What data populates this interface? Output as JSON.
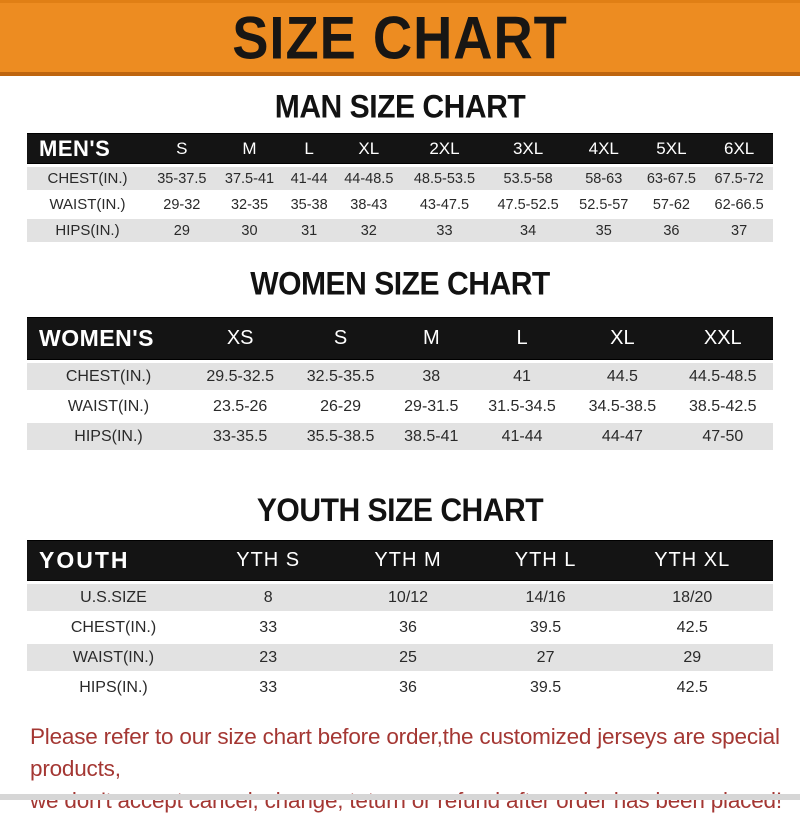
{
  "banner": {
    "title": "SIZE CHART",
    "bg_color": "#ED8C21",
    "text_color": "#181614"
  },
  "sections": [
    {
      "heading": "MAN SIZE CHART",
      "table": {
        "label": "MEN'S",
        "columns": [
          "S",
          "M",
          "L",
          "XL",
          "2XL",
          "3XL",
          "4XL",
          "5XL",
          "6XL"
        ],
        "rows": [
          {
            "label": "CHEST(IN.)",
            "values": [
              "35-37.5",
              "37.5-41",
              "41-44",
              "44-48.5",
              "48.5-53.5",
              "53.5-58",
              "58-63",
              "63-67.5",
              "67.5-72"
            ]
          },
          {
            "label": "WAIST(IN.)",
            "values": [
              "29-32",
              "32-35",
              "35-38",
              "38-43",
              "43-47.5",
              "47.5-52.5",
              "52.5-57",
              "57-62",
              "62-66.5"
            ]
          },
          {
            "label": "HIPS(IN.)",
            "values": [
              "29",
              "30",
              "31",
              "32",
              "33",
              "34",
              "35",
              "36",
              "37"
            ]
          }
        ]
      }
    },
    {
      "heading": "WOMEN SIZE CHART",
      "table": {
        "label": "WOMEN'S",
        "columns": [
          "XS",
          "S",
          "M",
          "L",
          "XL",
          "XXL"
        ],
        "rows": [
          {
            "label": "CHEST(IN.)",
            "values": [
              "29.5-32.5",
              "32.5-35.5",
              "38",
              "41",
              "44.5",
              "44.5-48.5"
            ]
          },
          {
            "label": "WAIST(IN.)",
            "values": [
              "23.5-26",
              "26-29",
              "29-31.5",
              "31.5-34.5",
              "34.5-38.5",
              "38.5-42.5"
            ]
          },
          {
            "label": "HIPS(IN.)",
            "values": [
              "33-35.5",
              "35.5-38.5",
              "38.5-41",
              "41-44",
              "44-47",
              "47-50"
            ]
          }
        ]
      }
    },
    {
      "heading": "YOUTH SIZE CHART",
      "table": {
        "label": "YOUTH",
        "columns": [
          "YTH S",
          "YTH M",
          "YTH L",
          "YTH XL"
        ],
        "rows": [
          {
            "label": "U.S.SIZE",
            "values": [
              "8",
              "10/12",
              "14/16",
              "18/20"
            ]
          },
          {
            "label": "CHEST(IN.)",
            "values": [
              "33",
              "36",
              "39.5",
              "42.5"
            ]
          },
          {
            "label": "WAIST(IN.)",
            "values": [
              "23",
              "25",
              "27",
              "29"
            ]
          },
          {
            "label": "HIPS(IN.)",
            "values": [
              "33",
              "36",
              "39.5",
              "42.5"
            ]
          }
        ]
      }
    }
  ],
  "disclaimer": {
    "line1": "Please refer to our size chart before order,the customized jerseys are special products,",
    "line2": "we don't accept cancel, change, teturn or refund after order has been placed!",
    "color": "#A43733"
  },
  "row_shade_color": "#E2E2E2",
  "header_bar_color": "#141414"
}
